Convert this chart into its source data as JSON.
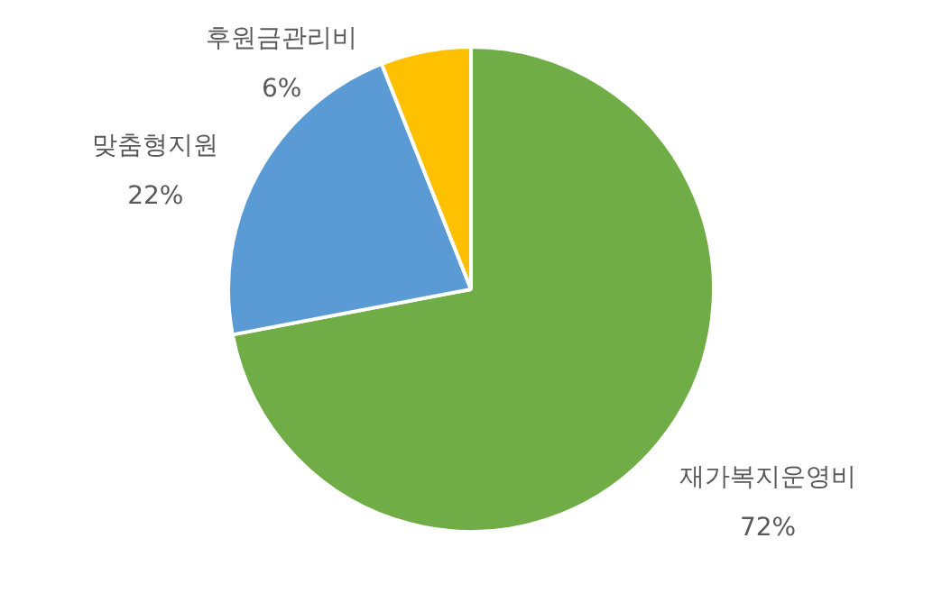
{
  "chart_data": {
    "type": "pie",
    "categories": [
      "재가복지운영비",
      "맞춤형지원",
      "후원금관리비"
    ],
    "values": [
      72,
      22,
      6
    ],
    "colors": [
      "#70ad47",
      "#5b9bd5",
      "#ffc000"
    ],
    "value_labels": [
      "72%",
      "22%",
      "6%"
    ],
    "legend": false
  }
}
